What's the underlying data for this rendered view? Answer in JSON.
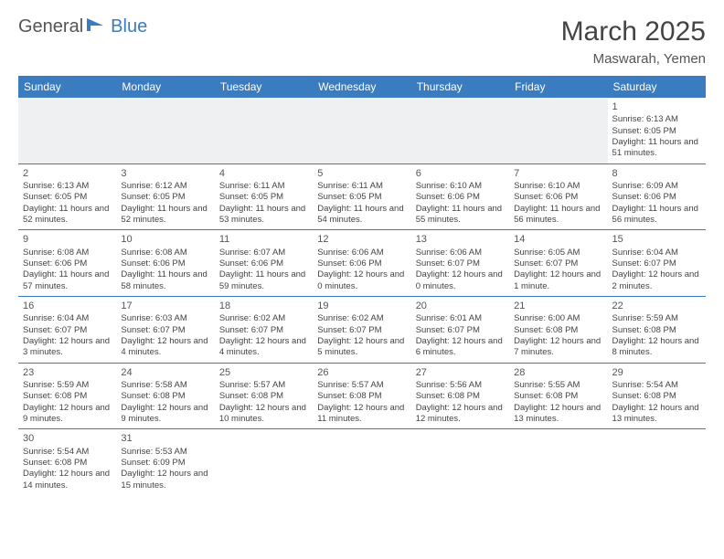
{
  "logo": {
    "text1": "General",
    "text2": "Blue",
    "icon_color": "#3b7bbf"
  },
  "title": "March 2025",
  "location": "Maswarah, Yemen",
  "header_bg": "#3b7bbf",
  "header_text_color": "#ffffff",
  "border_color": "#3b7bbf",
  "day_headers": [
    "Sunday",
    "Monday",
    "Tuesday",
    "Wednesday",
    "Thursday",
    "Friday",
    "Saturday"
  ],
  "weeks": [
    [
      null,
      null,
      null,
      null,
      null,
      null,
      {
        "n": "1",
        "sr": "6:13 AM",
        "ss": "6:05 PM",
        "dl": "11 hours and 51 minutes."
      }
    ],
    [
      {
        "n": "2",
        "sr": "6:13 AM",
        "ss": "6:05 PM",
        "dl": "11 hours and 52 minutes."
      },
      {
        "n": "3",
        "sr": "6:12 AM",
        "ss": "6:05 PM",
        "dl": "11 hours and 52 minutes."
      },
      {
        "n": "4",
        "sr": "6:11 AM",
        "ss": "6:05 PM",
        "dl": "11 hours and 53 minutes."
      },
      {
        "n": "5",
        "sr": "6:11 AM",
        "ss": "6:05 PM",
        "dl": "11 hours and 54 minutes."
      },
      {
        "n": "6",
        "sr": "6:10 AM",
        "ss": "6:06 PM",
        "dl": "11 hours and 55 minutes."
      },
      {
        "n": "7",
        "sr": "6:10 AM",
        "ss": "6:06 PM",
        "dl": "11 hours and 56 minutes."
      },
      {
        "n": "8",
        "sr": "6:09 AM",
        "ss": "6:06 PM",
        "dl": "11 hours and 56 minutes."
      }
    ],
    [
      {
        "n": "9",
        "sr": "6:08 AM",
        "ss": "6:06 PM",
        "dl": "11 hours and 57 minutes."
      },
      {
        "n": "10",
        "sr": "6:08 AM",
        "ss": "6:06 PM",
        "dl": "11 hours and 58 minutes."
      },
      {
        "n": "11",
        "sr": "6:07 AM",
        "ss": "6:06 PM",
        "dl": "11 hours and 59 minutes."
      },
      {
        "n": "12",
        "sr": "6:06 AM",
        "ss": "6:06 PM",
        "dl": "12 hours and 0 minutes."
      },
      {
        "n": "13",
        "sr": "6:06 AM",
        "ss": "6:07 PM",
        "dl": "12 hours and 0 minutes."
      },
      {
        "n": "14",
        "sr": "6:05 AM",
        "ss": "6:07 PM",
        "dl": "12 hours and 1 minute."
      },
      {
        "n": "15",
        "sr": "6:04 AM",
        "ss": "6:07 PM",
        "dl": "12 hours and 2 minutes."
      }
    ],
    [
      {
        "n": "16",
        "sr": "6:04 AM",
        "ss": "6:07 PM",
        "dl": "12 hours and 3 minutes."
      },
      {
        "n": "17",
        "sr": "6:03 AM",
        "ss": "6:07 PM",
        "dl": "12 hours and 4 minutes."
      },
      {
        "n": "18",
        "sr": "6:02 AM",
        "ss": "6:07 PM",
        "dl": "12 hours and 4 minutes."
      },
      {
        "n": "19",
        "sr": "6:02 AM",
        "ss": "6:07 PM",
        "dl": "12 hours and 5 minutes."
      },
      {
        "n": "20",
        "sr": "6:01 AM",
        "ss": "6:07 PM",
        "dl": "12 hours and 6 minutes."
      },
      {
        "n": "21",
        "sr": "6:00 AM",
        "ss": "6:08 PM",
        "dl": "12 hours and 7 minutes."
      },
      {
        "n": "22",
        "sr": "5:59 AM",
        "ss": "6:08 PM",
        "dl": "12 hours and 8 minutes."
      }
    ],
    [
      {
        "n": "23",
        "sr": "5:59 AM",
        "ss": "6:08 PM",
        "dl": "12 hours and 9 minutes."
      },
      {
        "n": "24",
        "sr": "5:58 AM",
        "ss": "6:08 PM",
        "dl": "12 hours and 9 minutes."
      },
      {
        "n": "25",
        "sr": "5:57 AM",
        "ss": "6:08 PM",
        "dl": "12 hours and 10 minutes."
      },
      {
        "n": "26",
        "sr": "5:57 AM",
        "ss": "6:08 PM",
        "dl": "12 hours and 11 minutes."
      },
      {
        "n": "27",
        "sr": "5:56 AM",
        "ss": "6:08 PM",
        "dl": "12 hours and 12 minutes."
      },
      {
        "n": "28",
        "sr": "5:55 AM",
        "ss": "6:08 PM",
        "dl": "12 hours and 13 minutes."
      },
      {
        "n": "29",
        "sr": "5:54 AM",
        "ss": "6:08 PM",
        "dl": "12 hours and 13 minutes."
      }
    ],
    [
      {
        "n": "30",
        "sr": "5:54 AM",
        "ss": "6:08 PM",
        "dl": "12 hours and 14 minutes."
      },
      {
        "n": "31",
        "sr": "5:53 AM",
        "ss": "6:09 PM",
        "dl": "12 hours and 15 minutes."
      },
      null,
      null,
      null,
      null,
      null
    ]
  ],
  "labels": {
    "sunrise": "Sunrise:",
    "sunset": "Sunset:",
    "daylight": "Daylight:"
  }
}
